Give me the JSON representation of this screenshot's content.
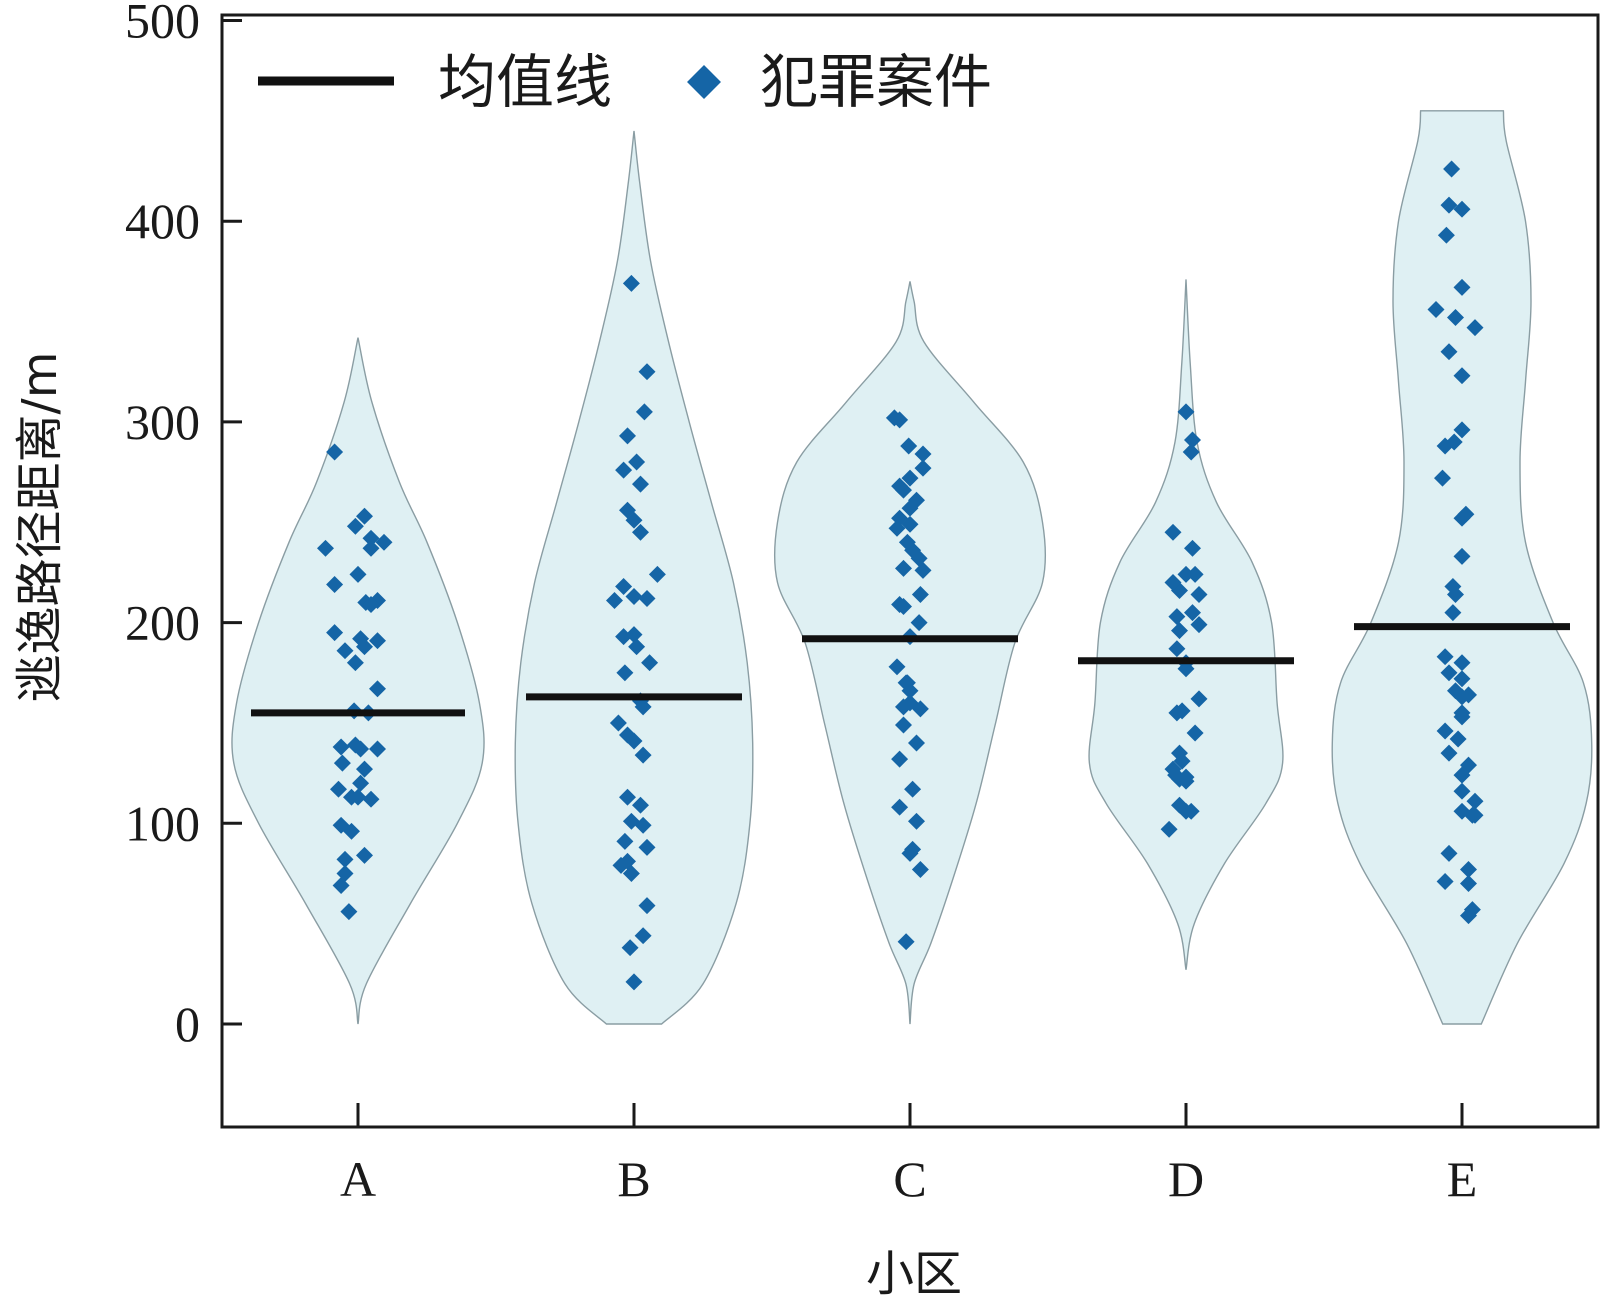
{
  "chart_data": {
    "type": "violin",
    "xlabel": "小区",
    "ylabel": "逃逸路径距离/m",
    "ylim": [
      -50,
      500
    ],
    "yticks": [
      "0",
      "100",
      "200",
      "300",
      "400",
      "500"
    ],
    "ytick_values": [
      0,
      100,
      200,
      300,
      400,
      500
    ],
    "categories": [
      "A",
      "B",
      "C",
      "D",
      "E"
    ],
    "legend": {
      "position": "top-left",
      "mean_label": "均值线",
      "points_label": "犯罪案件"
    },
    "colors": {
      "violin_fill": "#dff0f3",
      "violin_stroke": "#8a9da3",
      "point": "#1565a6",
      "mean_line": "#111111",
      "axis": "#1a1a1a"
    },
    "means": [
      155,
      163,
      192,
      181,
      198
    ],
    "violins": [
      {
        "y": [
          0,
          20,
          60,
          100,
          130,
          160,
          200,
          240,
          270,
          310,
          342
        ],
        "w": [
          0,
          0.06,
          0.38,
          0.72,
          0.9,
          0.88,
          0.72,
          0.5,
          0.3,
          0.1,
          0
        ]
      },
      {
        "y": [
          0,
          20,
          60,
          100,
          140,
          180,
          220,
          260,
          300,
          340,
          380,
          420,
          445
        ],
        "w": [
          0.2,
          0.5,
          0.74,
          0.84,
          0.86,
          0.82,
          0.72,
          0.56,
          0.4,
          0.25,
          0.12,
          0.04,
          0
        ]
      },
      {
        "y": [
          0,
          20,
          40,
          70,
          110,
          150,
          190,
          220,
          250,
          280,
          310,
          340,
          360,
          370
        ],
        "w": [
          0,
          0.03,
          0.15,
          0.3,
          0.48,
          0.62,
          0.76,
          0.96,
          0.96,
          0.82,
          0.46,
          0.1,
          0.03,
          0
        ]
      },
      {
        "y": [
          27,
          50,
          80,
          110,
          130,
          160,
          200,
          230,
          260,
          290,
          330,
          371
        ],
        "w": [
          0,
          0.06,
          0.28,
          0.58,
          0.7,
          0.66,
          0.62,
          0.48,
          0.22,
          0.08,
          0.03,
          0
        ]
      },
      {
        "y": [
          0,
          40,
          80,
          110,
          140,
          170,
          200,
          240,
          280,
          320,
          360,
          400,
          440,
          455
        ],
        "w": [
          0.14,
          0.4,
          0.74,
          0.9,
          0.94,
          0.88,
          0.66,
          0.46,
          0.42,
          0.46,
          0.5,
          0.46,
          0.32,
          0.3
        ]
      }
    ],
    "points": [
      {
        "category": "A",
        "jitter": [
          -0.18,
          0.05,
          -0.02,
          0.1,
          0.2,
          -0.25,
          0.1,
          0.0,
          -0.18,
          0.15,
          0.06,
          0.1,
          -0.18,
          0.02,
          0.15,
          0.05,
          -0.1,
          -0.02,
          0.15,
          -0.03,
          0.08,
          -0.13,
          -0.02,
          0.02,
          0.15,
          -0.12,
          0.05,
          0.02,
          -0.15,
          -0.05,
          0.1,
          0.0,
          -0.13,
          -0.05,
          0.05,
          -0.1,
          -0.1,
          -0.13,
          -0.07
        ],
        "values": [
          285,
          253,
          248,
          242,
          240,
          237,
          237,
          224,
          219,
          211,
          210,
          209,
          195,
          192,
          191,
          188,
          186,
          180,
          167,
          156,
          155,
          138,
          139,
          137,
          137,
          130,
          127,
          120,
          117,
          113,
          112,
          113,
          99,
          96,
          84,
          82,
          75,
          69,
          56
        ]
      },
      {
        "category": "B",
        "jitter": [
          -0.02,
          0.1,
          0.08,
          -0.05,
          -0.08,
          0.05,
          0.02,
          -0.05,
          0.0,
          0.05,
          -0.08,
          0.0,
          0.18,
          -0.15,
          -0.08,
          0.0,
          0.1,
          0.02,
          -0.07,
          0.12,
          0.05,
          0.07,
          -0.12,
          -0.05,
          0.0,
          0.07,
          -0.05,
          0.05,
          -0.02,
          0.07,
          -0.07,
          0.1,
          -0.05,
          -0.1,
          -0.02,
          0.1,
          0.07,
          -0.03,
          0.0
        ],
        "values": [
          369,
          325,
          305,
          293,
          276,
          269,
          280,
          256,
          251,
          245,
          218,
          213,
          224,
          211,
          193,
          194,
          212,
          188,
          175,
          180,
          161,
          158,
          150,
          144,
          141,
          134,
          113,
          109,
          101,
          99,
          91,
          88,
          81,
          79,
          75,
          59,
          44,
          38,
          21
        ]
      },
      {
        "category": "C",
        "jitter": [
          -0.12,
          -0.08,
          0.1,
          -0.01,
          0.1,
          0.0,
          -0.05,
          0.05,
          0.0,
          -0.08,
          0.0,
          -0.1,
          -0.02,
          0.02,
          0.07,
          -0.05,
          0.1,
          0.08,
          -0.08,
          -0.05,
          0.07,
          0.0,
          -0.1,
          -0.02,
          -0.03,
          0.0,
          0.0,
          -0.05,
          0.08,
          -0.05,
          0.05,
          -0.08,
          0.02,
          -0.08,
          0.05,
          0.02,
          0.0,
          0.08,
          -0.03,
          -0.08
        ],
        "values": [
          302,
          301,
          284,
          288,
          277,
          272,
          266,
          261,
          257,
          252,
          249,
          247,
          240,
          236,
          232,
          227,
          226,
          214,
          209,
          208,
          200,
          193,
          178,
          170,
          170,
          166,
          160,
          158,
          157,
          149,
          140,
          132,
          117,
          108,
          101,
          87,
          85,
          77,
          41,
          268
        ]
      },
      {
        "category": "D",
        "jitter": [
          0.0,
          0.05,
          0.04,
          -0.1,
          0.05,
          0.0,
          0.07,
          -0.05,
          0.1,
          -0.07,
          0.05,
          0.1,
          -0.05,
          -0.07,
          0.0,
          -0.07,
          0.1,
          -0.03,
          0.07,
          -0.1,
          -0.05,
          -0.03,
          0.0,
          0.0,
          -0.05,
          -0.08,
          0.0,
          -0.13,
          -0.05,
          0.04,
          0.0,
          -0.1
        ],
        "values": [
          305,
          291,
          285,
          245,
          237,
          224,
          224,
          216,
          214,
          203,
          205,
          199,
          196,
          187,
          177,
          155,
          162,
          156,
          145,
          127,
          135,
          131,
          123,
          121,
          109,
          124,
          106,
          97,
          122,
          106,
          180,
          220
        ]
      },
      {
        "category": "E",
        "jitter": [
          -0.08,
          -0.1,
          0.0,
          -0.12,
          0.0,
          -0.2,
          -0.05,
          0.1,
          -0.1,
          0.0,
          -0.06,
          0.0,
          -0.13,
          -0.15,
          0.03,
          0.0,
          0.0,
          -0.07,
          -0.05,
          -0.07,
          -0.13,
          0.0,
          -0.1,
          0.0,
          -0.05,
          0.05,
          0.0,
          0.0,
          0.0,
          -0.13,
          -0.03,
          -0.1,
          0.05,
          0.0,
          0.0,
          0.1,
          0.0,
          0.08,
          0.1,
          -0.1,
          0.05,
          -0.13,
          0.05,
          0.05,
          0.08
        ],
        "values": [
          426,
          408,
          406,
          393,
          367,
          356,
          352,
          347,
          335,
          323,
          290,
          296,
          288,
          272,
          254,
          252,
          233,
          218,
          214,
          205,
          183,
          180,
          175,
          172,
          166,
          164,
          163,
          155,
          153,
          146,
          142,
          135,
          129,
          124,
          116,
          111,
          106,
          104,
          104,
          85,
          77,
          71,
          70,
          54,
          57
        ]
      }
    ]
  }
}
